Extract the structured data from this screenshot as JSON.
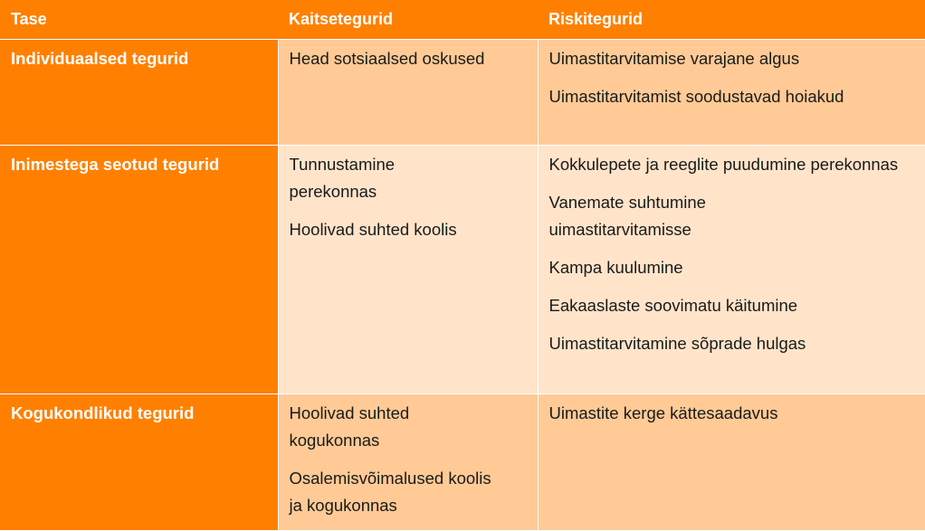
{
  "headers": [
    "Tase",
    "Kaitsetegurid",
    "Riskitegurid"
  ],
  "rows": [
    {
      "level": "Individuaalsed tegurid",
      "protective": [
        "Head sotsiaalsed oskused"
      ],
      "risk": [
        "Uimastitarvitamise varajane algus",
        "Uimastitarvitamist soodustavad hoiakud"
      ]
    },
    {
      "level": "Inimestega seotud tegurid",
      "protective": [
        "Tunnustamine perekonnas",
        "Hoolivad suhted koolis"
      ],
      "risk": [
        "Kokkulepete ja reeglite puudumine perekonnas",
        "Vanemate suhtumine uimastitarvitamisse",
        "Kampa kuulumine",
        "Eakaaslaste soovimatu käitumine",
        "Uimastitarvitamine sõprade hulgas"
      ]
    },
    {
      "level": "Kogukondlikud tegurid",
      "protective": [
        "Hoolivad suhted kogukonnas",
        "Osalemisvõimalused koolis ja kogukonnas"
      ],
      "risk": [
        "Uimastite kerge kättesaadavus"
      ]
    }
  ],
  "colors": {
    "header": "#FF8000",
    "row_light": "#FFCA95",
    "row_pale": "#FFE4CA"
  }
}
